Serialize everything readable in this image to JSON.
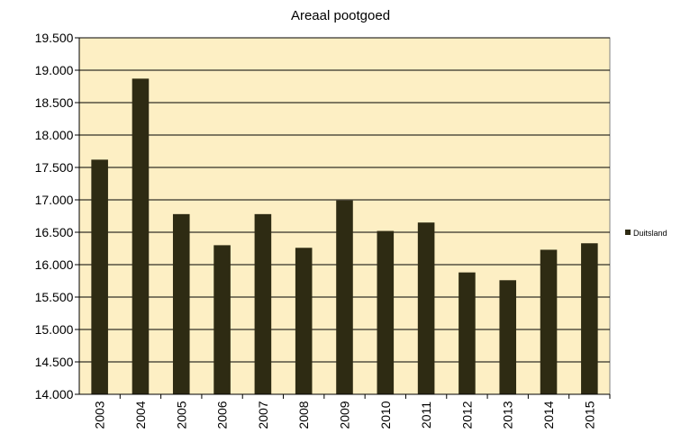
{
  "chart_data": {
    "type": "bar",
    "title": "Areaal pootgoed",
    "xlabel": "",
    "ylabel": "",
    "categories": [
      "2003",
      "2004",
      "2005",
      "2006",
      "2007",
      "2008",
      "2009",
      "2010",
      "2011",
      "2012",
      "2013",
      "2014",
      "2015"
    ],
    "series": [
      {
        "name": "Duitsland",
        "values": [
          17620,
          18870,
          16780,
          16300,
          16780,
          16260,
          16990,
          16520,
          16650,
          15880,
          15760,
          16230,
          16330
        ]
      }
    ],
    "ylim": [
      14000,
      19500
    ],
    "yticks": [
      14000,
      14500,
      15000,
      15500,
      16000,
      16500,
      17000,
      17500,
      18000,
      18500,
      19000,
      19500
    ],
    "ytick_labels": [
      "14.000",
      "14.500",
      "15.000",
      "15.500",
      "16.000",
      "16.500",
      "17.000",
      "17.500",
      "18.000",
      "18.500",
      "19.000",
      "19.500"
    ],
    "grid": true,
    "legend_position": "right",
    "colors": {
      "plot_background": "#fdefc4",
      "bar": "#2e2b13",
      "grid": "#000000"
    }
  }
}
